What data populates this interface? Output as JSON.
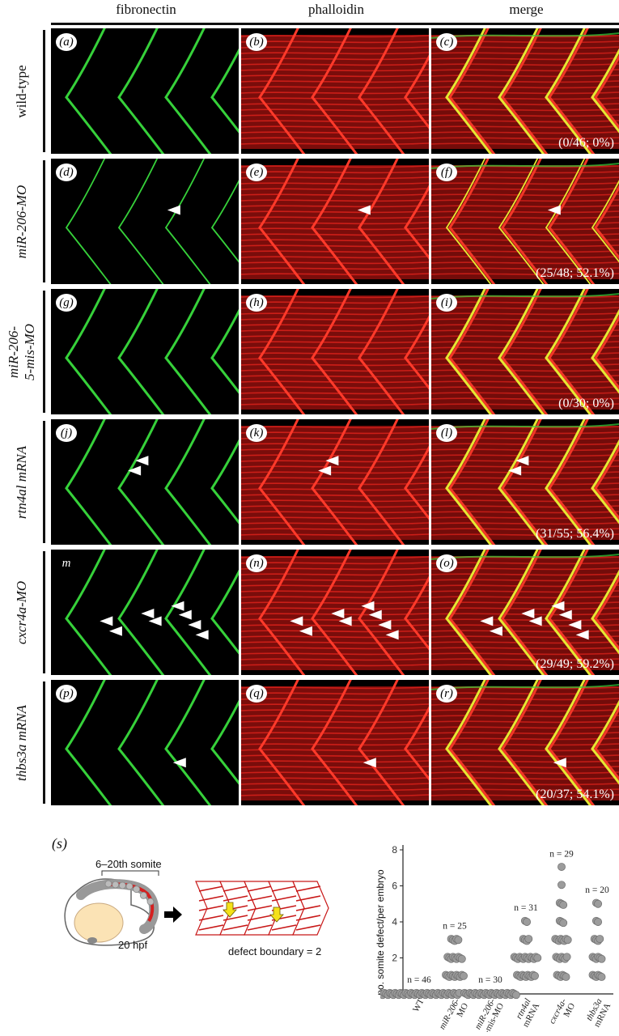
{
  "columns": [
    "fibronectin",
    "phalloidin",
    "merge"
  ],
  "rows": [
    {
      "label_lines": [
        "wild-type"
      ],
      "italic": [
        false
      ],
      "panels": [
        "a",
        "b",
        "c"
      ],
      "count": "(0/46; 0%)",
      "arrows": [],
      "fn": "normal",
      "ph": "normal"
    },
    {
      "label_lines": [
        "miR-206-MO"
      ],
      "italic": [
        true
      ],
      "panels": [
        "d",
        "e",
        "f"
      ],
      "count": "(25/48; 52.1%)",
      "arrows": [
        [
          0.62,
          0.41
        ]
      ],
      "fn": "thin",
      "ph": "normal"
    },
    {
      "label_lines": [
        "miR-206-",
        "5-mis-MO"
      ],
      "italic": [
        true,
        true
      ],
      "panels": [
        "g",
        "h",
        "i"
      ],
      "count": "(0/30; 0%)",
      "arrows": [],
      "fn": "normal",
      "ph": "normal"
    },
    {
      "label_lines": [
        "rtn4al mRNA"
      ],
      "italic": [
        true
      ],
      "panels": [
        "j",
        "k",
        "l"
      ],
      "count": "(31/55; 56.4%)",
      "arrows": [
        [
          0.45,
          0.33
        ],
        [
          0.41,
          0.41
        ]
      ],
      "fn": "normal",
      "ph": "normal"
    },
    {
      "label_lines": [
        "cxcr4a-MO"
      ],
      "italic": [
        true
      ],
      "panels": [
        "m",
        "n",
        "o"
      ],
      "count": "(29/49; 59.2%)",
      "arrows": [
        [
          0.26,
          0.57
        ],
        [
          0.31,
          0.65
        ],
        [
          0.48,
          0.51
        ],
        [
          0.52,
          0.57
        ],
        [
          0.64,
          0.45
        ],
        [
          0.68,
          0.52
        ],
        [
          0.73,
          0.6
        ],
        [
          0.77,
          0.68
        ]
      ],
      "fn": "normal",
      "ph": "normal"
    },
    {
      "label_lines": [
        "thbs3a mRNA"
      ],
      "italic": [
        true
      ],
      "panels": [
        "p",
        "q",
        "r"
      ],
      "count": "(20/37; 54.1%)",
      "arrows": [
        [
          0.65,
          0.66
        ]
      ],
      "fn": "normal",
      "ph": "normal"
    }
  ],
  "plain_label_panels": [
    "m"
  ],
  "colors": {
    "fibronectin": "#36d13a",
    "phalloidin": "#e8241e",
    "merge_boundary": "#e6e832",
    "background": "#000000"
  },
  "panel_s": {
    "label": "s",
    "somite_range": "6–20th somite",
    "stage": "20 hpf",
    "defect_text": "defect boundary = 2"
  },
  "chart_data": {
    "type": "scatter",
    "ylabel": "no. somite defect/per embryo",
    "ylim": [
      0,
      8
    ],
    "yticks": [
      0,
      2,
      4,
      6,
      8
    ],
    "categories": [
      {
        "lines": [
          "WT"
        ],
        "italic": false,
        "n_label": "n = 46"
      },
      {
        "lines": [
          "miR-206-",
          "MO"
        ],
        "italic": true,
        "n_label": "n = 25"
      },
      {
        "lines": [
          "miR-206-",
          "5-mis-MO"
        ],
        "italic": true,
        "n_label": "n = 30"
      },
      {
        "lines": [
          "rtn4al",
          "mRNA"
        ],
        "italic": true,
        "n_label": "n = 31"
      },
      {
        "lines": [
          "cxcr4a-",
          "MO"
        ],
        "italic": true,
        "n_label": "n = 29"
      },
      {
        "lines": [
          "thbs3a",
          "mRNA"
        ],
        "italic": true,
        "n_label": "n = 20"
      }
    ],
    "points": [
      [
        0,
        0,
        0,
        0,
        0,
        0,
        0,
        0,
        0,
        0,
        0,
        0,
        0,
        0,
        0,
        0,
        0,
        0,
        0,
        0,
        0,
        0,
        0,
        0,
        0,
        0,
        0,
        0,
        0,
        0,
        0,
        0,
        0,
        0,
        0,
        0,
        0,
        0,
        0,
        0,
        0,
        0,
        0,
        0,
        0,
        0
      ],
      [
        1,
        1,
        1,
        1,
        1,
        1,
        1,
        1,
        1,
        1,
        1,
        2,
        2,
        2,
        2,
        2,
        2,
        2,
        2,
        2,
        3,
        3,
        3,
        3,
        3
      ],
      [
        0,
        0,
        0,
        0,
        0,
        0,
        0,
        0,
        0,
        0,
        0,
        0,
        0,
        0,
        0,
        0,
        0,
        0,
        0,
        0,
        0,
        0,
        0,
        0,
        0,
        0,
        0,
        0,
        0,
        0
      ],
      [
        1,
        1,
        1,
        1,
        1,
        1,
        1,
        1,
        1,
        1,
        1,
        2,
        2,
        2,
        2,
        2,
        2,
        2,
        2,
        2,
        2,
        2,
        2,
        2,
        2,
        3,
        3,
        3,
        3,
        4,
        4
      ],
      [
        1,
        1,
        1,
        1,
        1,
        1,
        2,
        2,
        2,
        2,
        2,
        2,
        2,
        3,
        3,
        3,
        3,
        3,
        3,
        3,
        3,
        4,
        4,
        4,
        5,
        5,
        5,
        6,
        7
      ],
      [
        1,
        1,
        1,
        1,
        1,
        1,
        2,
        2,
        2,
        2,
        2,
        2,
        3,
        3,
        3,
        3,
        4,
        4,
        5,
        5
      ]
    ]
  }
}
